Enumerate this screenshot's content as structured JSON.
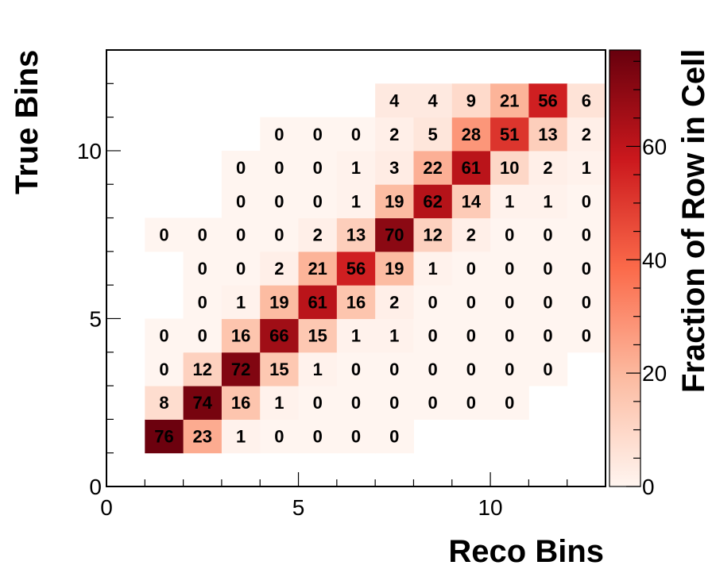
{
  "chart_data": {
    "type": "heatmap",
    "xlabel": "Reco Bins",
    "ylabel": "True Bins",
    "colorbar_label": "Fraction of Row in Cell",
    "xlim": [
      0,
      13
    ],
    "ylim": [
      0,
      13
    ],
    "zlim": [
      0,
      77
    ],
    "xticks": [
      0,
      5,
      10
    ],
    "yticks": [
      0,
      5,
      10
    ],
    "zticks": [
      0,
      20,
      40,
      60
    ],
    "colormap": [
      "#fff5f0",
      "#fcbba1",
      "#fb6a4a",
      "#cb181d",
      "#67000d"
    ],
    "cells": [
      {
        "x": 1,
        "y": 1,
        "value": 76
      },
      {
        "x": 2,
        "y": 1,
        "value": 23
      },
      {
        "x": 3,
        "y": 1,
        "value": 1
      },
      {
        "x": 4,
        "y": 1,
        "value": 0
      },
      {
        "x": 5,
        "y": 1,
        "value": 0
      },
      {
        "x": 6,
        "y": 1,
        "value": 0
      },
      {
        "x": 7,
        "y": 1,
        "value": 0
      },
      {
        "x": 1,
        "y": 2,
        "value": 8
      },
      {
        "x": 2,
        "y": 2,
        "value": 74
      },
      {
        "x": 3,
        "y": 2,
        "value": 16
      },
      {
        "x": 4,
        "y": 2,
        "value": 1
      },
      {
        "x": 5,
        "y": 2,
        "value": 0
      },
      {
        "x": 6,
        "y": 2,
        "value": 0
      },
      {
        "x": 7,
        "y": 2,
        "value": 0
      },
      {
        "x": 8,
        "y": 2,
        "value": 0
      },
      {
        "x": 9,
        "y": 2,
        "value": 0
      },
      {
        "x": 10,
        "y": 2,
        "value": 0
      },
      {
        "x": 1,
        "y": 3,
        "value": 0
      },
      {
        "x": 2,
        "y": 3,
        "value": 12
      },
      {
        "x": 3,
        "y": 3,
        "value": 72
      },
      {
        "x": 4,
        "y": 3,
        "value": 15
      },
      {
        "x": 5,
        "y": 3,
        "value": 1
      },
      {
        "x": 6,
        "y": 3,
        "value": 0
      },
      {
        "x": 7,
        "y": 3,
        "value": 0
      },
      {
        "x": 8,
        "y": 3,
        "value": 0
      },
      {
        "x": 9,
        "y": 3,
        "value": 0
      },
      {
        "x": 10,
        "y": 3,
        "value": 0
      },
      {
        "x": 11,
        "y": 3,
        "value": 0
      },
      {
        "x": 1,
        "y": 4,
        "value": 0
      },
      {
        "x": 2,
        "y": 4,
        "value": 0
      },
      {
        "x": 3,
        "y": 4,
        "value": 16
      },
      {
        "x": 4,
        "y": 4,
        "value": 66
      },
      {
        "x": 5,
        "y": 4,
        "value": 15
      },
      {
        "x": 6,
        "y": 4,
        "value": 1
      },
      {
        "x": 7,
        "y": 4,
        "value": 1
      },
      {
        "x": 8,
        "y": 4,
        "value": 0
      },
      {
        "x": 9,
        "y": 4,
        "value": 0
      },
      {
        "x": 10,
        "y": 4,
        "value": 0
      },
      {
        "x": 11,
        "y": 4,
        "value": 0
      },
      {
        "x": 12,
        "y": 4,
        "value": 0
      },
      {
        "x": 2,
        "y": 5,
        "value": 0
      },
      {
        "x": 3,
        "y": 5,
        "value": 1
      },
      {
        "x": 4,
        "y": 5,
        "value": 19
      },
      {
        "x": 5,
        "y": 5,
        "value": 61
      },
      {
        "x": 6,
        "y": 5,
        "value": 16
      },
      {
        "x": 7,
        "y": 5,
        "value": 2
      },
      {
        "x": 8,
        "y": 5,
        "value": 0
      },
      {
        "x": 9,
        "y": 5,
        "value": 0
      },
      {
        "x": 10,
        "y": 5,
        "value": 0
      },
      {
        "x": 11,
        "y": 5,
        "value": 0
      },
      {
        "x": 12,
        "y": 5,
        "value": 0
      },
      {
        "x": 2,
        "y": 6,
        "value": 0
      },
      {
        "x": 3,
        "y": 6,
        "value": 0
      },
      {
        "x": 4,
        "y": 6,
        "value": 2
      },
      {
        "x": 5,
        "y": 6,
        "value": 21
      },
      {
        "x": 6,
        "y": 6,
        "value": 56
      },
      {
        "x": 7,
        "y": 6,
        "value": 19
      },
      {
        "x": 8,
        "y": 6,
        "value": 1
      },
      {
        "x": 9,
        "y": 6,
        "value": 0
      },
      {
        "x": 10,
        "y": 6,
        "value": 0
      },
      {
        "x": 11,
        "y": 6,
        "value": 0
      },
      {
        "x": 12,
        "y": 6,
        "value": 0
      },
      {
        "x": 1,
        "y": 7,
        "value": 0
      },
      {
        "x": 2,
        "y": 7,
        "value": 0
      },
      {
        "x": 3,
        "y": 7,
        "value": 0
      },
      {
        "x": 4,
        "y": 7,
        "value": 0
      },
      {
        "x": 5,
        "y": 7,
        "value": 2
      },
      {
        "x": 6,
        "y": 7,
        "value": 13
      },
      {
        "x": 7,
        "y": 7,
        "value": 70
      },
      {
        "x": 8,
        "y": 7,
        "value": 12
      },
      {
        "x": 9,
        "y": 7,
        "value": 2
      },
      {
        "x": 10,
        "y": 7,
        "value": 0
      },
      {
        "x": 11,
        "y": 7,
        "value": 0
      },
      {
        "x": 12,
        "y": 7,
        "value": 0
      },
      {
        "x": 3,
        "y": 8,
        "value": 0
      },
      {
        "x": 4,
        "y": 8,
        "value": 0
      },
      {
        "x": 5,
        "y": 8,
        "value": 0
      },
      {
        "x": 6,
        "y": 8,
        "value": 1
      },
      {
        "x": 7,
        "y": 8,
        "value": 19
      },
      {
        "x": 8,
        "y": 8,
        "value": 62
      },
      {
        "x": 9,
        "y": 8,
        "value": 14
      },
      {
        "x": 10,
        "y": 8,
        "value": 1
      },
      {
        "x": 11,
        "y": 8,
        "value": 1
      },
      {
        "x": 12,
        "y": 8,
        "value": 0
      },
      {
        "x": 3,
        "y": 9,
        "value": 0
      },
      {
        "x": 4,
        "y": 9,
        "value": 0
      },
      {
        "x": 5,
        "y": 9,
        "value": 0
      },
      {
        "x": 6,
        "y": 9,
        "value": 1
      },
      {
        "x": 7,
        "y": 9,
        "value": 3
      },
      {
        "x": 8,
        "y": 9,
        "value": 22
      },
      {
        "x": 9,
        "y": 9,
        "value": 61
      },
      {
        "x": 10,
        "y": 9,
        "value": 10
      },
      {
        "x": 11,
        "y": 9,
        "value": 2
      },
      {
        "x": 12,
        "y": 9,
        "value": 1
      },
      {
        "x": 4,
        "y": 10,
        "value": 0
      },
      {
        "x": 5,
        "y": 10,
        "value": 0
      },
      {
        "x": 6,
        "y": 10,
        "value": 0
      },
      {
        "x": 7,
        "y": 10,
        "value": 2
      },
      {
        "x": 8,
        "y": 10,
        "value": 5
      },
      {
        "x": 9,
        "y": 10,
        "value": 28
      },
      {
        "x": 10,
        "y": 10,
        "value": 51
      },
      {
        "x": 11,
        "y": 10,
        "value": 13
      },
      {
        "x": 12,
        "y": 10,
        "value": 2
      },
      {
        "x": 7,
        "y": 11,
        "value": 4
      },
      {
        "x": 8,
        "y": 11,
        "value": 4
      },
      {
        "x": 9,
        "y": 11,
        "value": 9
      },
      {
        "x": 10,
        "y": 11,
        "value": 21
      },
      {
        "x": 11,
        "y": 11,
        "value": 56
      },
      {
        "x": 12,
        "y": 11,
        "value": 6
      }
    ]
  }
}
